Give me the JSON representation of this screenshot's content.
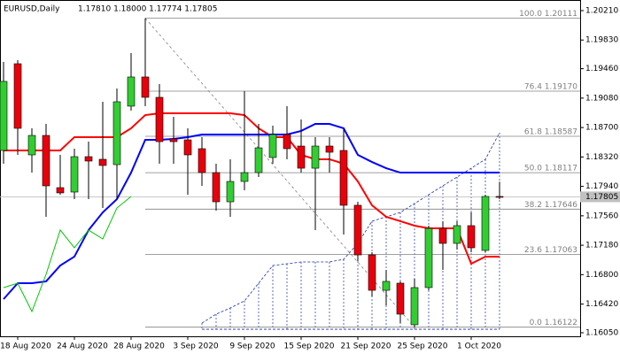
{
  "chart_data": {
    "type": "candlestick",
    "title": "EURUSD,Daily",
    "ohlc_label": "1.17810 1.18000 1.17774 1.17805",
    "last_price_label": "1.17805",
    "categories": [
      null,
      "18 Aug 2020",
      null,
      null,
      null,
      "24 Aug 2020",
      null,
      null,
      null,
      "28 Aug 2020",
      null,
      null,
      null,
      "3 Sep 2020",
      null,
      null,
      null,
      "9 Sep 2020",
      null,
      null,
      null,
      "15 Sep 2020",
      null,
      null,
      null,
      "21 Sep 2020",
      null,
      null,
      null,
      "25 Sep 2020",
      null,
      null,
      null,
      "1 Oct 2020",
      null,
      null
    ],
    "open": [
      1.18404,
      1.19524,
      1.18347,
      1.18598,
      1.17924,
      1.17867,
      1.18324,
      1.1829,
      1.18221,
      1.18976,
      1.19353,
      1.1909,
      1.18553,
      1.18541,
      1.18427,
      1.18118,
      1.17741,
      1.18004,
      1.18118,
      1.18313,
      1.1861,
      1.18461,
      1.18175,
      1.18461,
      1.18404,
      1.17696,
      1.17055,
      1.16598,
      1.1669,
      1.16153,
      1.16633,
      1.17398,
      1.17204,
      1.17433,
      1.17113,
      1.1781
    ],
    "high": [
      1.19547,
      1.1957,
      1.1869,
      1.18747,
      1.18347,
      1.18427,
      1.18518,
      1.19033,
      1.19204,
      1.19661,
      1.20111,
      1.19261,
      1.18838,
      1.1869,
      1.18576,
      1.18233,
      1.1829,
      1.1917,
      1.18747,
      1.18724,
      1.18976,
      1.18804,
      1.18576,
      1.18576,
      1.1869,
      1.17741,
      1.1709,
      1.16861,
      1.16713,
      1.16747,
      1.17433,
      1.1749,
      1.1749,
      1.17604,
      1.17833,
      1.18
    ],
    "low": [
      1.18233,
      1.18347,
      1.18118,
      1.17547,
      1.17833,
      1.17775,
      1.17775,
      1.17661,
      1.17775,
      1.18918,
      1.18976,
      1.18233,
      1.18233,
      1.17833,
      1.17947,
      1.17627,
      1.17547,
      1.1789,
      1.18061,
      1.18233,
      1.1829,
      1.18118,
      1.17376,
      1.18118,
      1.17318,
      1.16975,
      1.16518,
      1.16404,
      1.16175,
      1.16122,
      1.16598,
      1.16861,
      1.17124,
      1.1709,
      1.1709,
      1.17774
    ],
    "close": [
      1.19296,
      1.1869,
      1.18598,
      1.17947,
      1.17856,
      1.18324,
      1.18267,
      1.1821,
      1.19033,
      1.19353,
      1.1909,
      1.18518,
      1.18518,
      1.18347,
      1.18118,
      1.17741,
      1.18004,
      1.18118,
      1.18438,
      1.1861,
      1.18427,
      1.18175,
      1.18461,
      1.18381,
      1.17696,
      1.17055,
      1.16598,
      1.16713,
      1.1629,
      1.16633,
      1.17398,
      1.17204,
      1.17433,
      1.17147,
      1.1781,
      1.17805
    ],
    "up_color": "#32cd32",
    "down_color": "#e8000b",
    "series": [
      {
        "color": "#ff0000",
        "width": 2,
        "values": [
          1.18404,
          1.18404,
          1.18404,
          1.18404,
          1.18404,
          1.18576,
          1.18576,
          1.18576,
          1.18576,
          1.1869,
          1.18861,
          1.18884,
          1.18884,
          1.18884,
          1.18884,
          1.18884,
          1.18884,
          1.18861,
          1.1869,
          1.18576,
          1.18576,
          1.18347,
          1.1829,
          1.1829,
          1.18233,
          1.18004,
          1.17696,
          1.17547,
          1.1749,
          1.17433,
          1.17398,
          1.17398,
          1.17398,
          1.16941,
          1.17033,
          1.17033
        ]
      },
      {
        "color": "#0000ff",
        "width": 2,
        "values": [
          1.16484,
          1.1669,
          1.1669,
          1.16713,
          1.16918,
          1.17033,
          1.17376,
          1.17604,
          1.17775,
          1.18118,
          1.18541,
          1.18541,
          1.18553,
          1.18576,
          1.1861,
          1.1861,
          1.1861,
          1.1861,
          1.1861,
          1.1861,
          1.1861,
          1.18656,
          1.18747,
          1.18747,
          1.1869,
          1.18347,
          1.18255,
          1.18175,
          1.18118,
          1.18118,
          1.18118,
          1.18118,
          1.18118,
          1.18118,
          1.18118,
          1.18118
        ]
      },
      {
        "color": "#00c800",
        "width": 1,
        "values": [
          1.16633,
          1.1669,
          1.16324,
          1.16804,
          1.17376,
          1.17147,
          1.17376,
          1.17261,
          1.17661,
          1.1781,
          null,
          null,
          null,
          null,
          null,
          null,
          null,
          null,
          null,
          null,
          null,
          null,
          null,
          null,
          null,
          null,
          null,
          null,
          null,
          null,
          null,
          null,
          null,
          null,
          null,
          null
        ]
      }
    ],
    "cloud": {
      "color": "#1c2fa8",
      "upper": [
        null,
        null,
        null,
        null,
        null,
        null,
        null,
        null,
        null,
        null,
        null,
        null,
        null,
        null,
        1.16175,
        1.1629,
        1.1637,
        1.16461,
        1.1669,
        1.16918,
        1.16941,
        1.16964,
        1.16964,
        1.16964,
        1.16998,
        1.17204,
        1.1749,
        1.17547,
        1.17604,
        1.17718,
        1.17833,
        1.17947,
        1.18061,
        1.18175,
        1.1829,
        1.18633
      ],
      "lower": [
        null,
        null,
        null,
        null,
        null,
        null,
        null,
        null,
        null,
        null,
        null,
        null,
        null,
        null,
        1.16095,
        1.16095,
        1.16095,
        1.16095,
        1.16095,
        1.16095,
        1.16095,
        1.16095,
        1.16095,
        1.16095,
        1.16095,
        1.16095,
        1.16095,
        1.16095,
        1.16095,
        1.16095,
        1.16095,
        1.16095,
        1.16095,
        1.16095,
        1.16095,
        1.16095
      ]
    },
    "fib": {
      "color": "#808080",
      "levels": [
        {
          "value": 1.20111,
          "label": "100.0 1.20111"
        },
        {
          "value": 1.1917,
          "label": "76.4 1.19170"
        },
        {
          "value": 1.18587,
          "label": "61.8 1.18587"
        },
        {
          "value": 1.18117,
          "label": "50.0 1.18117"
        },
        {
          "value": 1.17646,
          "label": "38.2 1.17646"
        },
        {
          "value": 1.17063,
          "label": "23.6 1.17063"
        },
        {
          "value": 1.16122,
          "label": "0.0 1.16122"
        }
      ]
    },
    "ylim": [
      1.16004,
      1.20347
    ],
    "yticks": [
      {
        "value": 1.2021,
        "label": "1.20210"
      },
      {
        "value": 1.1983,
        "label": "1.19830"
      },
      {
        "value": 1.1946,
        "label": "1.19460"
      },
      {
        "value": 1.1908,
        "label": "1.19080"
      },
      {
        "value": 1.187,
        "label": "1.18700"
      },
      {
        "value": 1.1832,
        "label": "1.18320"
      },
      {
        "value": 1.1794,
        "label": "1.17940"
      },
      {
        "value": 1.1756,
        "label": "1.17560"
      },
      {
        "value": 1.1718,
        "label": "1.17180"
      },
      {
        "value": 1.168,
        "label": "1.16800"
      },
      {
        "value": 1.1642,
        "label": "1.16420"
      },
      {
        "value": 1.1605,
        "label": "1.16050"
      }
    ]
  }
}
